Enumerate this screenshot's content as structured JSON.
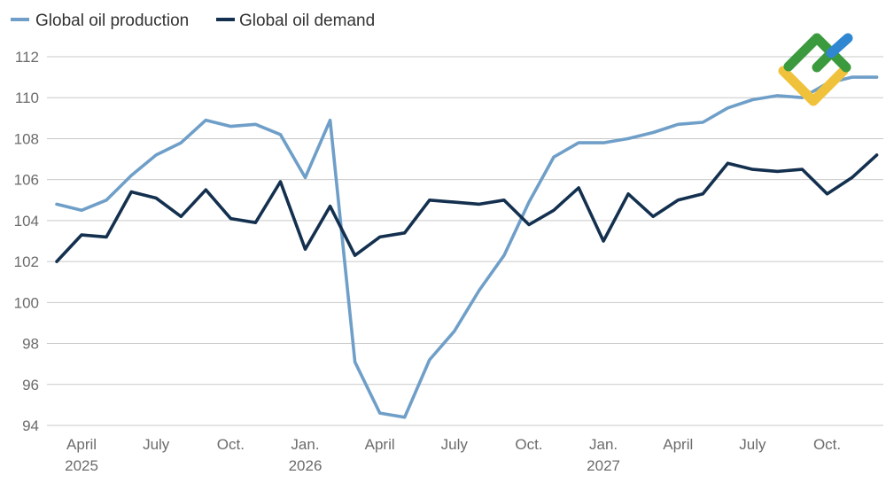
{
  "chart_data": {
    "type": "line",
    "title": "",
    "xlabel": "",
    "ylabel": "",
    "ylim": [
      94,
      112
    ],
    "yticks": [
      94,
      96,
      98,
      100,
      102,
      104,
      106,
      108,
      110,
      112
    ],
    "grid": "horizontal",
    "legend_position": "top-left",
    "x": [
      "2025-03",
      "2025-04",
      "2025-05",
      "2025-06",
      "2025-07",
      "2025-08",
      "2025-09",
      "2025-10",
      "2025-11",
      "2025-12",
      "2026-01",
      "2026-02",
      "2026-03",
      "2026-04",
      "2026-05",
      "2026-06",
      "2026-07",
      "2026-08",
      "2026-09",
      "2026-10",
      "2026-11",
      "2026-12",
      "2027-01",
      "2027-02",
      "2027-03",
      "2027-04",
      "2027-05",
      "2027-06",
      "2027-07",
      "2027-08",
      "2027-09",
      "2027-10",
      "2027-11",
      "2027-12"
    ],
    "xticks": [
      {
        "x": "2025-04",
        "label": "April",
        "sublabel": "2025"
      },
      {
        "x": "2025-07",
        "label": "July",
        "sublabel": ""
      },
      {
        "x": "2025-10",
        "label": "Oct.",
        "sublabel": ""
      },
      {
        "x": "2026-01",
        "label": "Jan.",
        "sublabel": "2026"
      },
      {
        "x": "2026-04",
        "label": "April",
        "sublabel": ""
      },
      {
        "x": "2026-07",
        "label": "July",
        "sublabel": ""
      },
      {
        "x": "2026-10",
        "label": "Oct.",
        "sublabel": ""
      },
      {
        "x": "2027-01",
        "label": "Jan.",
        "sublabel": "2027"
      },
      {
        "x": "2027-04",
        "label": "April",
        "sublabel": ""
      },
      {
        "x": "2027-07",
        "label": "July",
        "sublabel": ""
      },
      {
        "x": "2027-10",
        "label": "Oct.",
        "sublabel": ""
      }
    ],
    "series": [
      {
        "name": "Global oil production",
        "color": "#6f9fc8",
        "values": [
          104.8,
          104.5,
          105.0,
          106.2,
          107.2,
          107.8,
          108.9,
          108.6,
          108.7,
          108.2,
          106.1,
          108.9,
          97.1,
          94.6,
          94.4,
          97.2,
          98.6,
          100.6,
          102.3,
          104.9,
          107.1,
          107.8,
          107.8,
          108.0,
          108.3,
          108.7,
          108.8,
          109.5,
          109.9,
          110.1,
          110.0,
          110.7,
          111.0,
          111.0
        ]
      },
      {
        "name": "Global oil demand",
        "color": "#14304f",
        "values": [
          102.0,
          103.3,
          103.2,
          105.4,
          105.1,
          104.2,
          105.5,
          104.1,
          103.9,
          105.9,
          102.6,
          104.7,
          102.3,
          103.2,
          103.4,
          105.0,
          104.9,
          104.8,
          105.0,
          103.8,
          104.5,
          105.6,
          103.0,
          105.3,
          104.2,
          105.0,
          105.3,
          106.8,
          106.5,
          106.4,
          106.5,
          105.3,
          106.1,
          107.2
        ]
      }
    ]
  },
  "logo": {
    "colors": {
      "green": "#3b9a3e",
      "blue": "#2f86d1",
      "yellow": "#f0c23b"
    }
  }
}
